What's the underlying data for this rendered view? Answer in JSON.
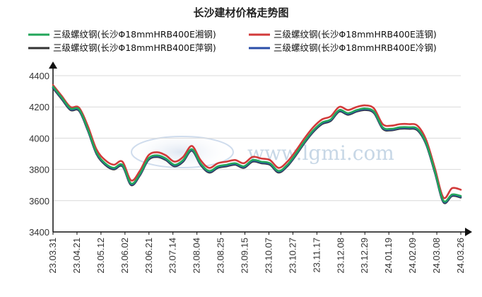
{
  "chart_data": {
    "type": "line",
    "title": "长沙建材价格走势图",
    "watermark": "www.lgmi.com",
    "ylim": [
      3400,
      4400
    ],
    "yticks": [
      3400,
      3600,
      3800,
      4000,
      4200,
      4400
    ],
    "xticks": [
      "23.03.31",
      "23.04.21",
      "23.05.12",
      "23.06.02",
      "23.06.21",
      "23.07.14",
      "23.08.04",
      "23.08.25",
      "23.09.15",
      "23.10.07",
      "23.10.27",
      "23.11.17",
      "23.12.08",
      "23.12.29",
      "24.01.19",
      "24.02.09",
      "24.03.08",
      "24.03.26"
    ],
    "grid": true,
    "legend_position": "top",
    "series": [
      {
        "name": "三级螺纹钢(长沙Φ18mmHRB400E湘钢)",
        "color": "#22a55a",
        "values": [
          4330,
          4260,
          4190,
          4185,
          4060,
          3910,
          3840,
          3810,
          3830,
          3710,
          3770,
          3870,
          3890,
          3870,
          3830,
          3860,
          3930,
          3840,
          3790,
          3820,
          3830,
          3840,
          3820,
          3860,
          3850,
          3840,
          3790,
          3830,
          3900,
          3980,
          4050,
          4100,
          4120,
          4180,
          4160,
          4180,
          4190,
          4170,
          4070,
          4060,
          4070,
          4070,
          4060,
          3970,
          3790,
          3600,
          3640,
          3630
        ]
      },
      {
        "name": "三级螺纹钢(长沙Φ18mmHRB400E涟钢)",
        "color": "#d23a3a",
        "values": [
          4340,
          4270,
          4200,
          4195,
          4080,
          3930,
          3860,
          3830,
          3850,
          3730,
          3790,
          3890,
          3910,
          3890,
          3850,
          3880,
          3950,
          3860,
          3810,
          3840,
          3850,
          3860,
          3840,
          3880,
          3870,
          3860,
          3810,
          3850,
          3920,
          4000,
          4070,
          4120,
          4140,
          4200,
          4180,
          4200,
          4210,
          4190,
          4090,
          4080,
          4090,
          4090,
          4080,
          3990,
          3810,
          3620,
          3680,
          3670
        ]
      },
      {
        "name": "三级螺纹钢(长沙Φ18mmHRB400E萍钢)",
        "color": "#333333",
        "values": [
          4320,
          4250,
          4180,
          4175,
          4050,
          3900,
          3830,
          3800,
          3820,
          3700,
          3760,
          3860,
          3880,
          3860,
          3820,
          3850,
          3920,
          3830,
          3780,
          3810,
          3820,
          3830,
          3810,
          3850,
          3840,
          3830,
          3780,
          3820,
          3890,
          3970,
          4040,
          4090,
          4110,
          4170,
          4150,
          4170,
          4180,
          4160,
          4060,
          4050,
          4060,
          4060,
          4050,
          3960,
          3780,
          3590,
          3630,
          3620
        ]
      },
      {
        "name": "三级螺纹钢(长沙Φ18mmHRB400E冷钢)",
        "color": "#2a4ea8",
        "values": [
          4325,
          4255,
          4185,
          4180,
          4055,
          3905,
          3835,
          3805,
          3825,
          3705,
          3765,
          3865,
          3885,
          3865,
          3825,
          3855,
          3925,
          3835,
          3785,
          3815,
          3825,
          3835,
          3815,
          3855,
          3845,
          3835,
          3785,
          3825,
          3895,
          3975,
          4045,
          4095,
          4115,
          4175,
          4155,
          4175,
          4185,
          4165,
          4065,
          4055,
          4065,
          4065,
          4055,
          3965,
          3785,
          3595,
          3635,
          3625
        ]
      }
    ]
  }
}
